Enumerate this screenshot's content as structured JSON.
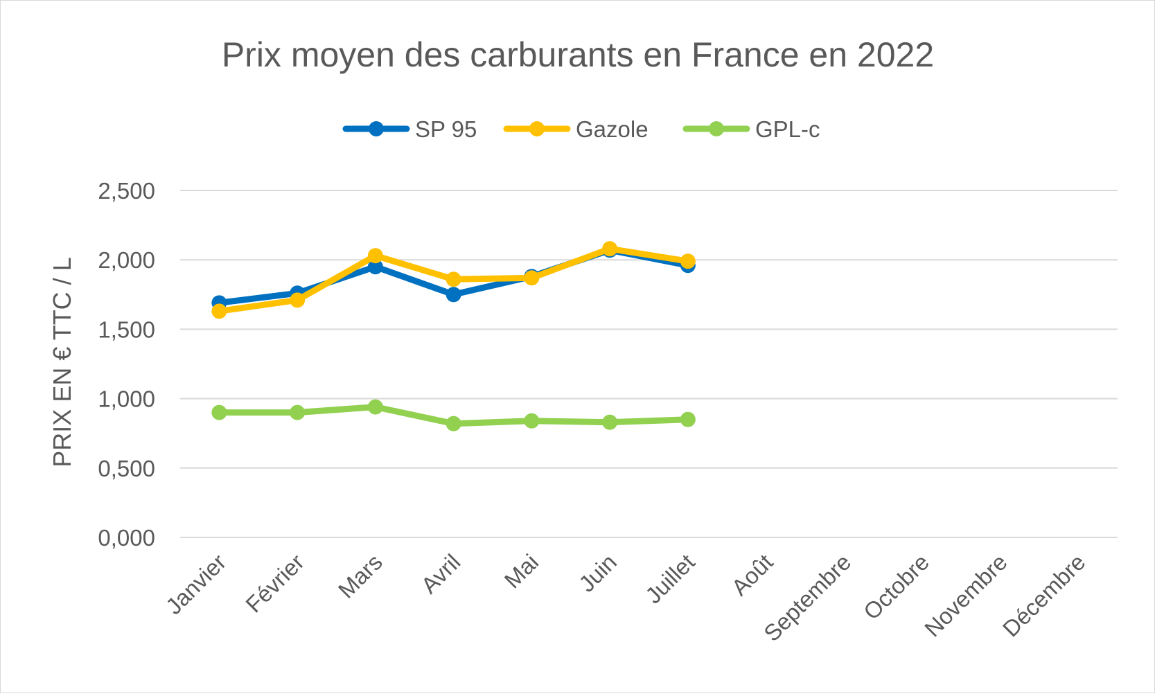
{
  "chart_data": {
    "type": "line",
    "title": "Prix moyen des carburants en France en 2022",
    "ylabel": "PRIX EN  € TTC / L",
    "xlabel": "",
    "categories": [
      "Janvier",
      "Février",
      "Mars",
      "Avril",
      "Mai",
      "Juin",
      "Juillet",
      "Août",
      "Septembre",
      "Octobre",
      "Novembre",
      "Décembre"
    ],
    "ylim": [
      0,
      2.5
    ],
    "yticks": [
      0,
      0.5,
      1,
      1.5,
      2,
      2.5
    ],
    "ytick_labels": [
      "0,000",
      "0,500",
      "1,000",
      "1,500",
      "2,000",
      "2,500"
    ],
    "grid": true,
    "legend_position": "top",
    "series": [
      {
        "name": "SP 95",
        "color": "#0070C0",
        "values": [
          1.69,
          1.76,
          1.95,
          1.75,
          1.88,
          2.07,
          1.96,
          null,
          null,
          null,
          null,
          null
        ]
      },
      {
        "name": "Gazole",
        "color": "#FFC000",
        "values": [
          1.63,
          1.71,
          2.03,
          1.86,
          1.87,
          2.08,
          1.99,
          null,
          null,
          null,
          null,
          null
        ]
      },
      {
        "name": "GPL-c",
        "color": "#92D050",
        "values": [
          0.9,
          0.9,
          0.94,
          0.82,
          0.84,
          0.83,
          0.85,
          null,
          null,
          null,
          null,
          null
        ]
      }
    ]
  }
}
